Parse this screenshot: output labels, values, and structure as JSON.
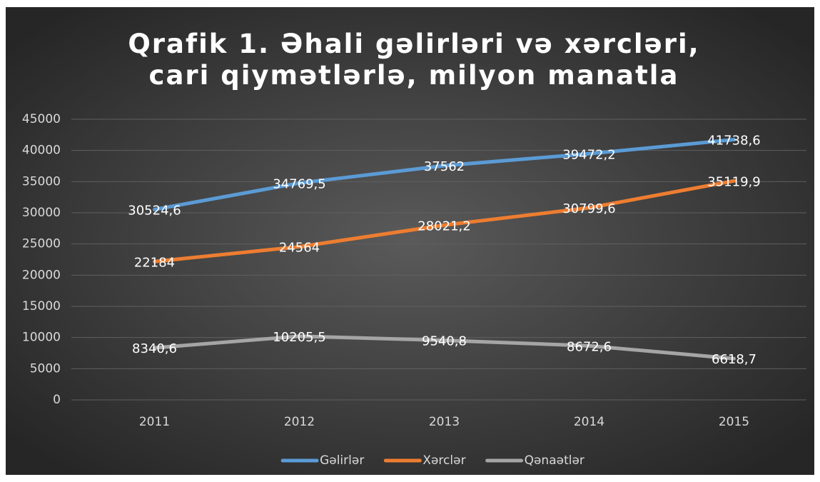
{
  "chart_data": {
    "type": "line",
    "title": "Qrafik 1. Əhali gəlirləri və xərcləri, cari qiymətlərlə, milyon manatla",
    "categories": [
      "2011",
      "2012",
      "2013",
      "2014",
      "2015"
    ],
    "series": [
      {
        "name": "Gəlirlər",
        "color": "#5b9bd5",
        "values": [
          30524.6,
          34769.5,
          37562,
          39472.2,
          41738.6
        ],
        "value_labels": [
          "30524,6",
          "34769,5",
          "37562",
          "39472,2",
          "41738,6"
        ]
      },
      {
        "name": "Xərclər",
        "color": "#ed7d31",
        "values": [
          22184,
          24564,
          28021.2,
          30799.6,
          35119.9
        ],
        "value_labels": [
          "22184",
          "24564",
          "28021,2",
          "30799,6",
          "35119,9"
        ]
      },
      {
        "name": "Qənaətlər",
        "color": "#a5a5a5",
        "values": [
          8340.6,
          10205.5,
          9540.8,
          8672.6,
          6618.7
        ],
        "value_labels": [
          "8340,6",
          "10205,5",
          "9540,8",
          "8672,6",
          "6618,7"
        ]
      }
    ],
    "ylim": [
      0,
      45000
    ],
    "yticks": [
      0,
      5000,
      10000,
      15000,
      20000,
      25000,
      30000,
      35000,
      40000,
      45000
    ],
    "grid": true,
    "legend": "bottom"
  }
}
